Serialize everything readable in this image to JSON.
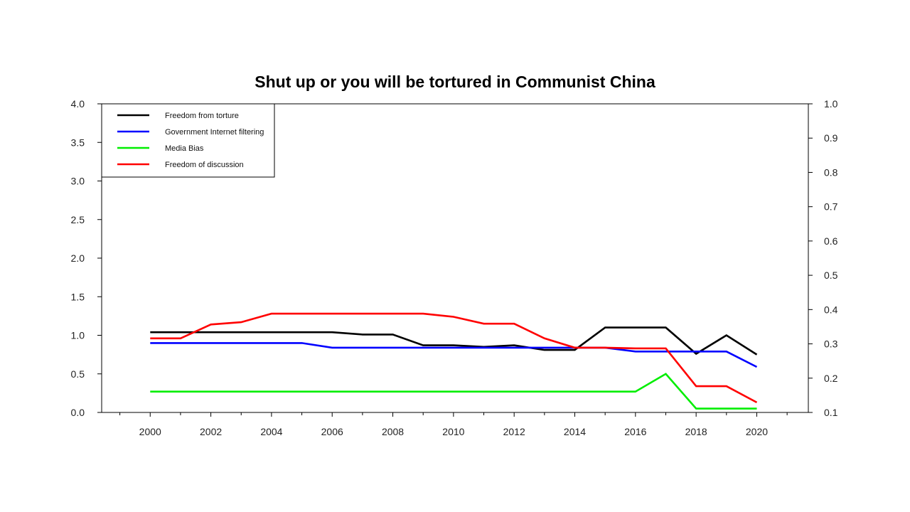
{
  "chart_data": {
    "type": "line",
    "title": "Shut up or you will be tortured in Communist China",
    "xlabel": "",
    "ylabel": "",
    "xlim": [
      1998.4,
      2021.7
    ],
    "x_ticks": [
      2000,
      2002,
      2004,
      2006,
      2008,
      2010,
      2012,
      2014,
      2016,
      2018,
      2020
    ],
    "x_tick_labels": [
      "2000",
      "2002",
      "2004",
      "2006",
      "2008",
      "2010",
      "2012",
      "2014",
      "2016",
      "2018",
      "2020"
    ],
    "ylim_left": [
      0,
      4
    ],
    "y_ticks_left": [
      "0.0",
      "0.5",
      "1.0",
      "1.5",
      "2.0",
      "2.5",
      "3.0",
      "3.5",
      "4.0"
    ],
    "ylim_right": [
      0.1,
      1.0
    ],
    "y_ticks_right": [
      "0.1",
      "0.2",
      "0.3",
      "0.4",
      "0.5",
      "0.6",
      "0.7",
      "0.8",
      "0.9",
      "1.0"
    ],
    "legend_position": "top-left",
    "grid": false,
    "x": [
      2000,
      2001,
      2002,
      2003,
      2004,
      2005,
      2006,
      2007,
      2008,
      2009,
      2010,
      2011,
      2012,
      2013,
      2014,
      2015,
      2016,
      2017,
      2018,
      2019,
      2020
    ],
    "series": [
      {
        "name": "Freedom from torture",
        "color": "#000000",
        "axis": "left",
        "values": [
          1.04,
          1.04,
          1.04,
          1.04,
          1.04,
          1.04,
          1.04,
          1.01,
          1.01,
          0.87,
          0.87,
          0.85,
          0.87,
          0.81,
          0.81,
          1.1,
          1.1,
          1.1,
          0.76,
          1.0,
          0.75
        ]
      },
      {
        "name": "Government Internet filtering",
        "color": "#0000ff",
        "axis": "left",
        "values": [
          0.9,
          0.9,
          0.9,
          0.9,
          0.9,
          0.9,
          0.84,
          0.84,
          0.84,
          0.84,
          0.84,
          0.84,
          0.84,
          0.84,
          0.84,
          0.84,
          0.79,
          0.79,
          0.79,
          0.79,
          0.59
        ]
      },
      {
        "name": "Media Bias",
        "color": "#00ee00",
        "axis": "left",
        "values": [
          0.27,
          0.27,
          0.27,
          0.27,
          0.27,
          0.27,
          0.27,
          0.27,
          0.27,
          0.27,
          0.27,
          0.27,
          0.27,
          0.27,
          0.27,
          0.27,
          0.27,
          0.5,
          0.05,
          0.05,
          0.05
        ]
      },
      {
        "name": "Freedom of discussion",
        "color": "#ff0000",
        "axis": "left",
        "values": [
          0.96,
          0.96,
          1.14,
          1.17,
          1.28,
          1.28,
          1.28,
          1.28,
          1.28,
          1.28,
          1.24,
          1.15,
          1.15,
          0.96,
          0.84,
          0.84,
          0.83,
          0.83,
          0.34,
          0.34,
          0.13
        ]
      }
    ]
  }
}
